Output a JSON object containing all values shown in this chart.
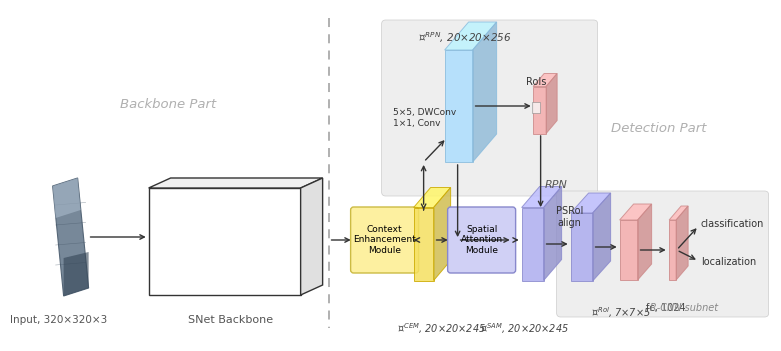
{
  "bg_color": "#ffffff",
  "backbone_label": "Backbone Part",
  "detection_label": "Detection Part",
  "input_label": "Input, 320×320×3",
  "snet_label": "SNet Backbone",
  "cem_text": "Context\nEnhancement\nModule",
  "sam_text": "Spatial\nAttention\nModule",
  "psroi_text": "PSRoI\nalign",
  "rpn_text": "RPN",
  "rois_text": "RoIs",
  "dwconv_text": "5×5, DWConv\n1×1, Conv",
  "classification_text": "classification",
  "localization_text": "localization",
  "fc_text": "fc, 1024",
  "rcnn_text": "R-CNN subnet",
  "rpn_feature_text": "20×20×256",
  "f_cem_text": "20×20×245",
  "f_sam_text": "20×20×245",
  "f_roi_text": "7×7×5",
  "color_blue_para": "#aaddff",
  "color_blue_para_edge": "#88bbdd",
  "color_yellow_para": "#f5e060",
  "color_yellow_para_edge": "#ccaa00",
  "color_purple_para": "#aaaaee",
  "color_purple_para_edge": "#8888cc",
  "color_pink_para": "#f5aaaa",
  "color_pink_para_edge": "#cc8888",
  "color_cem_fill": "#fdf0a0",
  "color_cem_edge": "#ccbb44",
  "color_sam_fill": "#d0d0f5",
  "color_sam_edge": "#8888cc",
  "color_rpn_bg": "#eeeeee",
  "color_rcnn_bg": "#eeeeee",
  "color_sep": "#aaaaaa",
  "color_text_label": "#888888",
  "color_text_dark": "#333333",
  "color_arrow": "#333333"
}
